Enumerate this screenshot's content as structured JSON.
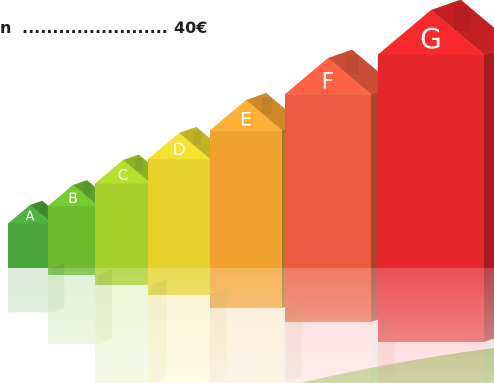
{
  "caption": {
    "prefix": "n",
    "leader": "........................",
    "price": "40€"
  },
  "energy_classes": [
    {
      "label": "A",
      "color": "#4aa53a"
    },
    {
      "label": "B",
      "color": "#6cbc2e"
    },
    {
      "label": "C",
      "color": "#a6cf2a"
    },
    {
      "label": "D",
      "color": "#e4d22a"
    },
    {
      "label": "E",
      "color": "#f0a230"
    },
    {
      "label": "F",
      "color": "#ec5b3f"
    },
    {
      "label": "G",
      "color": "#e5262a"
    }
  ]
}
